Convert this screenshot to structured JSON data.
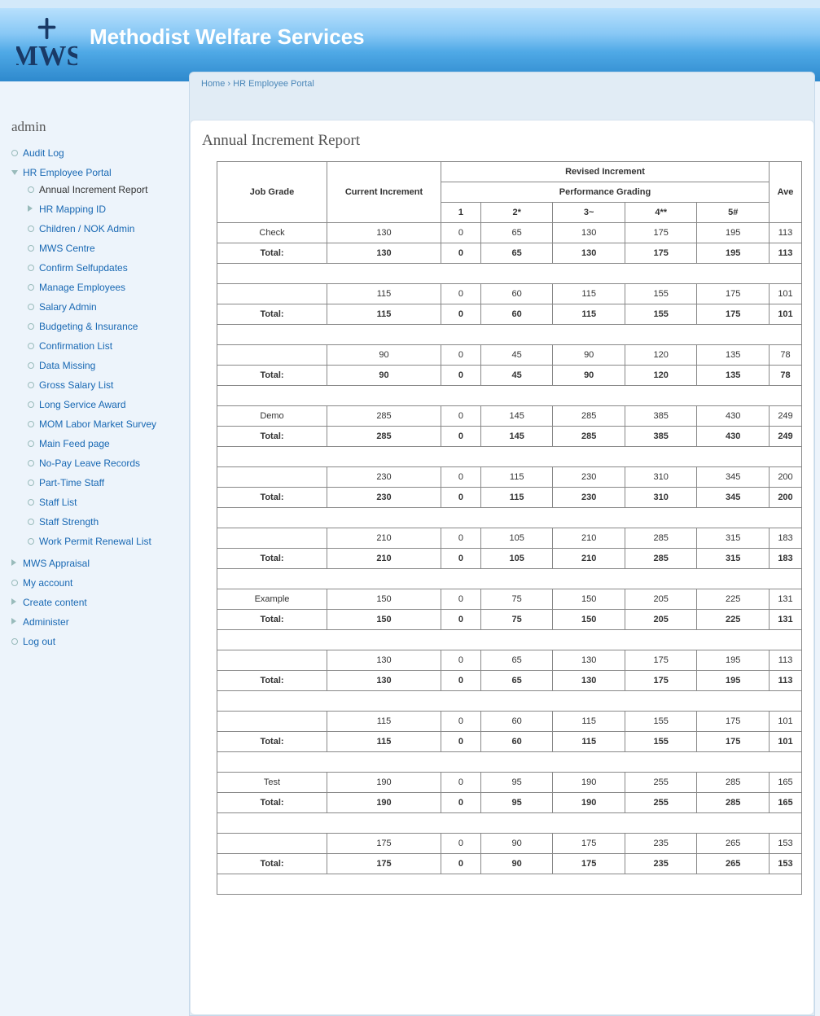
{
  "site": {
    "title": "Methodist Welfare Services"
  },
  "breadcrumb": {
    "home": "Home",
    "sep": "›",
    "current": "HR Employee Portal"
  },
  "sidebar": {
    "title": "admin",
    "items": [
      {
        "label": "Audit Log",
        "bullet": "o"
      },
      {
        "label": "HR Employee Portal",
        "bullet": "tri-down",
        "children": [
          {
            "label": "Annual Increment Report",
            "bullet": "o",
            "active": true
          },
          {
            "label": "HR Mapping ID",
            "bullet": "tri"
          },
          {
            "label": "Children / NOK Admin",
            "bullet": "o"
          },
          {
            "label": "MWS Centre",
            "bullet": "o"
          },
          {
            "label": "Confirm Selfupdates",
            "bullet": "o"
          },
          {
            "label": "Manage Employees",
            "bullet": "o"
          },
          {
            "label": "Salary Admin",
            "bullet": "o"
          },
          {
            "label": "Budgeting & Insurance",
            "bullet": "o"
          },
          {
            "label": "Confirmation List",
            "bullet": "o"
          },
          {
            "label": "Data Missing",
            "bullet": "o"
          },
          {
            "label": "Gross Salary List",
            "bullet": "o"
          },
          {
            "label": "Long Service Award",
            "bullet": "o"
          },
          {
            "label": "MOM Labor Market Survey",
            "bullet": "o"
          },
          {
            "label": "Main Feed page",
            "bullet": "o"
          },
          {
            "label": "No-Pay Leave Records",
            "bullet": "o"
          },
          {
            "label": "Part-Time Staff",
            "bullet": "o"
          },
          {
            "label": "Staff List",
            "bullet": "o"
          },
          {
            "label": "Staff Strength",
            "bullet": "o"
          },
          {
            "label": "Work Permit Renewal List",
            "bullet": "o"
          }
        ]
      },
      {
        "label": "MWS Appraisal",
        "bullet": "tri"
      },
      {
        "label": "My account",
        "bullet": "o"
      },
      {
        "label": "Create content",
        "bullet": "tri"
      },
      {
        "label": "Administer",
        "bullet": "tri"
      },
      {
        "label": "Log out",
        "bullet": "o"
      }
    ]
  },
  "page": {
    "title": "Annual Increment Report"
  },
  "table": {
    "col_job_grade": "Job Grade",
    "col_current": "Current Increment",
    "col_revised": "Revised Increment",
    "col_perf": "Performance Grading",
    "col_ave": "Ave",
    "perf_headers": [
      "1",
      "2*",
      "3~",
      "4**",
      "5#"
    ],
    "total_label": "Total:",
    "groups": [
      {
        "rows": [
          {
            "grade": "Check",
            "curr": "130",
            "p": [
              "0",
              "65",
              "130",
              "175",
              "195"
            ],
            "ave": "113"
          }
        ],
        "total": {
          "curr": "130",
          "p": [
            "0",
            "65",
            "130",
            "175",
            "195"
          ],
          "ave": "113"
        }
      },
      {
        "rows": [
          {
            "grade": "",
            "curr": "115",
            "p": [
              "0",
              "60",
              "115",
              "155",
              "175"
            ],
            "ave": "101"
          }
        ],
        "total": {
          "curr": "115",
          "p": [
            "0",
            "60",
            "115",
            "155",
            "175"
          ],
          "ave": "101"
        }
      },
      {
        "rows": [
          {
            "grade": "",
            "curr": "90",
            "p": [
              "0",
              "45",
              "90",
              "120",
              "135"
            ],
            "ave": "78"
          }
        ],
        "total": {
          "curr": "90",
          "p": [
            "0",
            "45",
            "90",
            "120",
            "135"
          ],
          "ave": "78"
        }
      },
      {
        "rows": [
          {
            "grade": "Demo",
            "curr": "285",
            "p": [
              "0",
              "145",
              "285",
              "385",
              "430"
            ],
            "ave": "249"
          }
        ],
        "total": {
          "curr": "285",
          "p": [
            "0",
            "145",
            "285",
            "385",
            "430"
          ],
          "ave": "249"
        }
      },
      {
        "rows": [
          {
            "grade": "",
            "curr": "230",
            "p": [
              "0",
              "115",
              "230",
              "310",
              "345"
            ],
            "ave": "200"
          }
        ],
        "total": {
          "curr": "230",
          "p": [
            "0",
            "115",
            "230",
            "310",
            "345"
          ],
          "ave": "200"
        }
      },
      {
        "rows": [
          {
            "grade": "",
            "curr": "210",
            "p": [
              "0",
              "105",
              "210",
              "285",
              "315"
            ],
            "ave": "183"
          }
        ],
        "total": {
          "curr": "210",
          "p": [
            "0",
            "105",
            "210",
            "285",
            "315"
          ],
          "ave": "183"
        }
      },
      {
        "rows": [
          {
            "grade": "Example",
            "curr": "150",
            "p": [
              "0",
              "75",
              "150",
              "205",
              "225"
            ],
            "ave": "131"
          }
        ],
        "total": {
          "curr": "150",
          "p": [
            "0",
            "75",
            "150",
            "205",
            "225"
          ],
          "ave": "131"
        }
      },
      {
        "rows": [
          {
            "grade": "",
            "curr": "130",
            "p": [
              "0",
              "65",
              "130",
              "175",
              "195"
            ],
            "ave": "113"
          }
        ],
        "total": {
          "curr": "130",
          "p": [
            "0",
            "65",
            "130",
            "175",
            "195"
          ],
          "ave": "113"
        }
      },
      {
        "rows": [
          {
            "grade": "",
            "curr": "115",
            "p": [
              "0",
              "60",
              "115",
              "155",
              "175"
            ],
            "ave": "101"
          }
        ],
        "total": {
          "curr": "115",
          "p": [
            "0",
            "60",
            "115",
            "155",
            "175"
          ],
          "ave": "101"
        }
      },
      {
        "rows": [
          {
            "grade": "Test",
            "curr": "190",
            "p": [
              "0",
              "95",
              "190",
              "255",
              "285"
            ],
            "ave": "165"
          }
        ],
        "total": {
          "curr": "190",
          "p": [
            "0",
            "95",
            "190",
            "255",
            "285"
          ],
          "ave": "165"
        }
      },
      {
        "rows": [
          {
            "grade": "",
            "curr": "175",
            "p": [
              "0",
              "90",
              "175",
              "235",
              "265"
            ],
            "ave": "153"
          }
        ],
        "total": {
          "curr": "175",
          "p": [
            "0",
            "90",
            "175",
            "235",
            "265"
          ],
          "ave": "153"
        }
      }
    ]
  }
}
